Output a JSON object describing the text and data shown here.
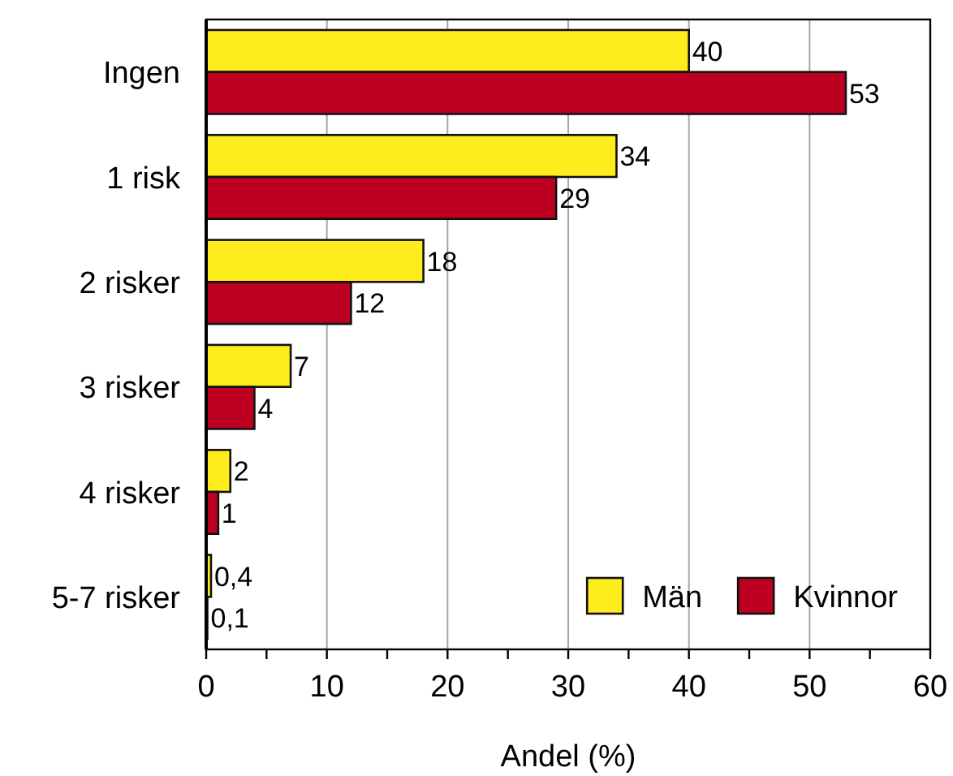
{
  "chart_data": {
    "type": "bar",
    "orientation": "horizontal",
    "categories": [
      "Ingen",
      "1 risk",
      "2 risker",
      "3 risker",
      "4 risker",
      "5-7 risker"
    ],
    "xlabel": "Andel (%)",
    "xlim": [
      0,
      60
    ],
    "xticks": [
      0,
      {
        "value": 5,
        "label": null
      },
      10,
      {
        "value": 15,
        "label": null
      },
      20,
      {
        "value": 25,
        "label": null
      },
      30,
      {
        "value": 35,
        "label": null
      },
      40,
      {
        "value": 45,
        "label": null
      },
      50,
      {
        "value": 55,
        "label": null
      },
      60
    ],
    "grid": "x",
    "legend": "bottom right",
    "series": [
      {
        "name": "Män",
        "color": "#ffec1c",
        "values": [
          40,
          34,
          18,
          7,
          2,
          0.4
        ],
        "value_labels": [
          "40",
          "34",
          "18",
          "7",
          "2",
          "0,4"
        ]
      },
      {
        "name": "Kvinnor",
        "color": "#bd0021",
        "values": [
          53,
          29,
          12,
          4,
          1,
          0.1
        ],
        "value_labels": [
          "53",
          "29",
          "12",
          "4",
          "1",
          "0,1"
        ]
      }
    ]
  }
}
